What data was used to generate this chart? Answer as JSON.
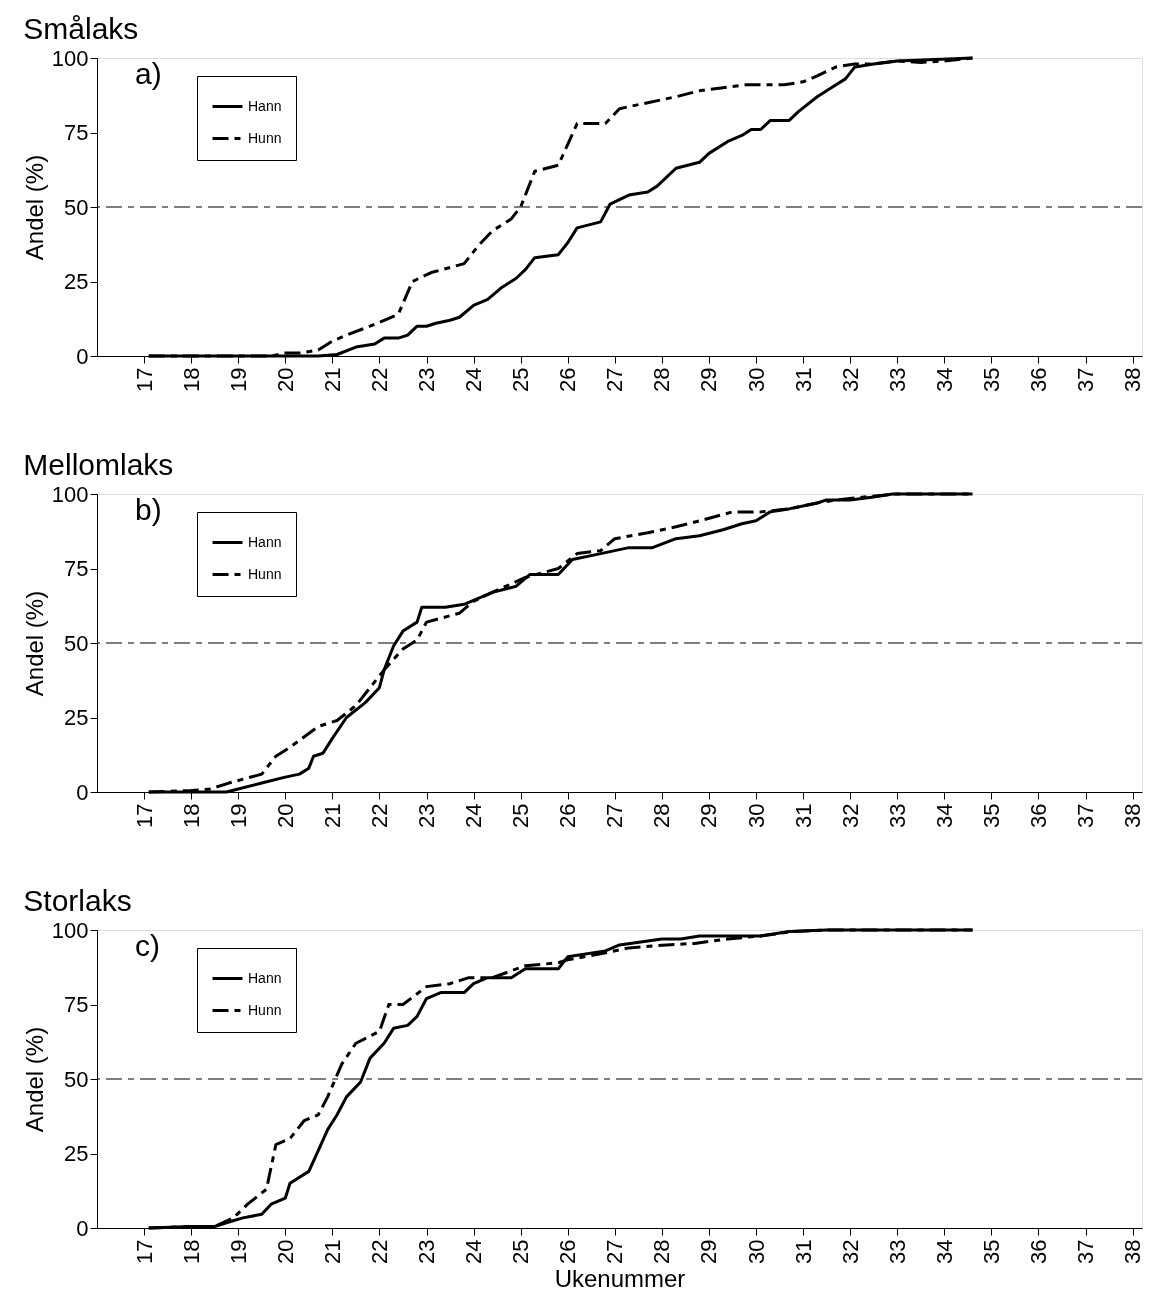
{
  "chart_data": [
    {
      "type": "line",
      "title": "Smålaks",
      "ylabel": "Andel (%)",
      "annotations": [
        "a)"
      ],
      "legend": "top left",
      "grid": false,
      "xlim": [
        16,
        38.2
      ],
      "ylim": [
        0,
        100
      ],
      "xticks": [
        17,
        18,
        19,
        20,
        21,
        22,
        23,
        24,
        25,
        26,
        27,
        28,
        29,
        30,
        31,
        32,
        33,
        34,
        35,
        36,
        37,
        38
      ],
      "yticks": [
        0,
        25,
        50,
        75,
        100
      ],
      "ref_lines": [
        {
          "axis": "y",
          "value": 50,
          "line_style": "dashed",
          "color": "#000000"
        }
      ],
      "series": [
        {
          "name": "Hann",
          "color": "#000000",
          "line_style": "solid",
          "x": [
            17.1,
            20.7,
            21.1,
            21.5,
            21.9,
            22.1,
            22.4,
            22.6,
            22.8,
            23.0,
            23.2,
            23.5,
            23.7,
            24.0,
            24.3,
            24.6,
            24.9,
            25.1,
            25.3,
            25.8,
            26.0,
            26.2,
            26.7,
            26.9,
            27.3,
            27.7,
            27.9,
            28.3,
            28.8,
            29.0,
            29.4,
            29.7,
            29.9,
            30.1,
            30.3,
            30.7,
            30.9,
            31.3,
            31.6,
            31.9,
            32.1,
            32.5,
            33.0,
            34.6
          ],
          "values": [
            0,
            0,
            0.5,
            3,
            4,
            6,
            6,
            7,
            10,
            10,
            11,
            12,
            13,
            17,
            19,
            23,
            26,
            29,
            33,
            34,
            38,
            43,
            45,
            51,
            54,
            55,
            57,
            63,
            65,
            68,
            72,
            74,
            76,
            76,
            79,
            79,
            82,
            87,
            90,
            93,
            97,
            98,
            99,
            100
          ]
        },
        {
          "name": "Hunn",
          "color": "#000000",
          "line_style": "dashed",
          "x": [
            17.1,
            19.7,
            20.0,
            20.3,
            20.7,
            21.0,
            21.3,
            21.8,
            22.4,
            22.7,
            23.1,
            23.8,
            24.1,
            24.4,
            24.8,
            25.0,
            25.3,
            25.8,
            26.0,
            26.2,
            26.8,
            27.1,
            27.7,
            28.3,
            28.8,
            29.3,
            29.8,
            30.6,
            31.0,
            31.3,
            31.7,
            32.1,
            32.5,
            33.0,
            33.5,
            34.0,
            34.6
          ],
          "values": [
            0,
            0,
            1,
            1,
            2,
            5,
            7,
            10,
            14,
            25,
            28,
            31,
            37,
            42,
            46,
            50,
            62,
            64,
            71,
            78,
            78,
            83,
            85,
            87,
            89,
            90,
            91,
            91,
            92,
            94,
            97,
            98,
            98,
            99,
            98.5,
            99,
            100
          ]
        }
      ]
    },
    {
      "type": "line",
      "title": "Mellomlaks",
      "ylabel": "Andel (%)",
      "annotations": [
        "b)"
      ],
      "legend": "top left",
      "grid": false,
      "xlim": [
        16,
        38.2
      ],
      "ylim": [
        0,
        100
      ],
      "xticks": [
        17,
        18,
        19,
        20,
        21,
        22,
        23,
        24,
        25,
        26,
        27,
        28,
        29,
        30,
        31,
        32,
        33,
        34,
        35,
        36,
        37,
        38
      ],
      "yticks": [
        0,
        25,
        50,
        75,
        100
      ],
      "ref_lines": [
        {
          "axis": "y",
          "value": 50,
          "line_style": "dashed",
          "color": "#000000"
        }
      ],
      "series": [
        {
          "name": "Hann",
          "color": "#000000",
          "line_style": "solid",
          "x": [
            17.1,
            18.75,
            19.0,
            19.5,
            20.0,
            20.3,
            20.5,
            20.6,
            20.8,
            21.0,
            21.3,
            21.7,
            22.0,
            22.1,
            22.3,
            22.5,
            22.8,
            22.9,
            23.4,
            23.8,
            24.4,
            24.9,
            25.2,
            25.8,
            26.1,
            26.7,
            27.3,
            27.8,
            28.3,
            28.8,
            29.3,
            29.7,
            30.0,
            30.3,
            30.7,
            31.3,
            31.5,
            32.0,
            32.5,
            32.9,
            34.6
          ],
          "values": [
            0,
            0,
            1,
            3,
            5,
            6,
            8,
            12,
            13,
            18,
            25,
            30,
            35,
            41,
            49,
            54,
            57,
            62,
            62,
            63,
            67,
            69,
            73,
            73,
            78,
            80,
            82,
            82,
            85,
            86,
            88,
            90,
            91,
            94,
            95,
            97,
            98,
            98,
            99,
            100,
            100
          ]
        },
        {
          "name": "Hunn",
          "color": "#000000",
          "line_style": "dashed",
          "x": [
            17.1,
            18.0,
            18.4,
            18.8,
            19.5,
            19.8,
            20.1,
            20.7,
            21.1,
            21.5,
            22.1,
            22.5,
            22.8,
            23.0,
            23.7,
            24.0,
            24.4,
            25.1,
            25.8,
            26.2,
            26.7,
            27.0,
            27.7,
            28.3,
            28.8,
            29.5,
            30.1,
            30.7,
            31.3,
            31.7,
            32.3,
            33.0,
            34.6
          ],
          "values": [
            0,
            0.5,
            1,
            3,
            6,
            12,
            15,
            22,
            24,
            29,
            41,
            48,
            51,
            57,
            60,
            64,
            67,
            72,
            75,
            80,
            81,
            85,
            87,
            89,
            91,
            94,
            94,
            95,
            97,
            98,
            99,
            100,
            100
          ]
        }
      ]
    },
    {
      "type": "line",
      "title": "Storlaks",
      "ylabel": "Andel (%)",
      "xlabel": "Ukenummer",
      "annotations": [
        "c)"
      ],
      "legend": "top left",
      "grid": false,
      "xlim": [
        16,
        38.2
      ],
      "ylim": [
        0,
        100
      ],
      "xticks": [
        17,
        18,
        19,
        20,
        21,
        22,
        23,
        24,
        25,
        26,
        27,
        28,
        29,
        30,
        31,
        32,
        33,
        34,
        35,
        36,
        37,
        38
      ],
      "yticks": [
        0,
        25,
        50,
        75,
        100
      ],
      "ref_lines": [
        {
          "axis": "y",
          "value": 50,
          "line_style": "dashed",
          "color": "#000000"
        }
      ],
      "series": [
        {
          "name": "Hann",
          "color": "#000000",
          "line_style": "solid",
          "x": [
            17.1,
            18.0,
            18.5,
            18.8,
            19.1,
            19.5,
            19.7,
            20.0,
            20.1,
            20.5,
            20.7,
            20.9,
            21.1,
            21.3,
            21.6,
            21.8,
            22.1,
            22.3,
            22.6,
            22.8,
            23.0,
            23.3,
            23.8,
            24.0,
            24.3,
            24.8,
            25.1,
            25.8,
            26.0,
            26.8,
            27.1,
            28.0,
            28.4,
            28.8,
            30.1,
            30.7,
            31.5,
            34.6
          ],
          "values": [
            0,
            0.5,
            0.5,
            2,
            3.4,
            4.6,
            8,
            10,
            15,
            19,
            26,
            33,
            38,
            44,
            49,
            57,
            62,
            67,
            68,
            71,
            77,
            79,
            79,
            82,
            84,
            84,
            87,
            87,
            91,
            93,
            95,
            97,
            97,
            98,
            98,
            99.5,
            100,
            100
          ]
        },
        {
          "name": "Hunn",
          "color": "#000000",
          "line_style": "dashed",
          "x": [
            17.1,
            18.0,
            18.5,
            18.9,
            19.2,
            19.6,
            19.8,
            20.1,
            20.4,
            20.7,
            20.9,
            21.2,
            21.5,
            22.0,
            22.2,
            22.5,
            23.0,
            23.5,
            23.9,
            24.4,
            25.1,
            25.8,
            26.0,
            26.7,
            27.3,
            28.1,
            28.7,
            29.4,
            30.1,
            30.8,
            31.5,
            34.6
          ],
          "values": [
            0,
            0.5,
            0.5,
            3.4,
            8,
            13,
            28,
            30,
            36,
            38,
            44,
            55,
            62,
            66,
            75,
            75,
            81,
            82,
            84,
            84,
            88,
            89,
            90,
            92,
            94,
            95,
            95.5,
            97,
            98,
            99.5,
            100,
            100
          ]
        }
      ]
    }
  ]
}
